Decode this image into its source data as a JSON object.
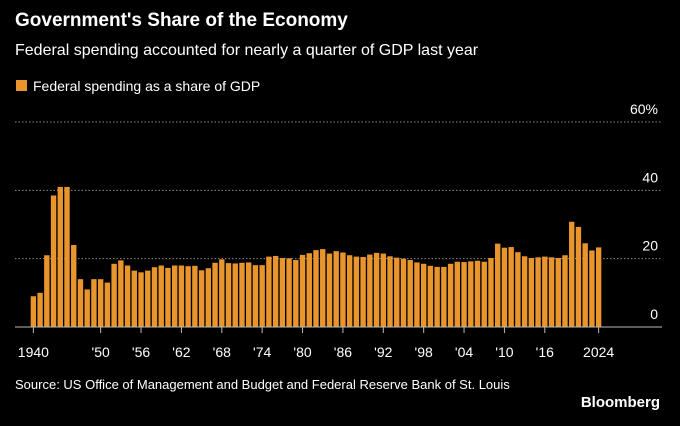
{
  "chart_data": {
    "type": "bar",
    "title": "Government's Share of the Economy",
    "subtitle": "Federal spending accounted for nearly a quarter of GDP last year",
    "series": [
      {
        "name": "Federal spending as a share of GDP",
        "color": "#e8952d",
        "values": [
          9,
          10,
          21,
          38.5,
          41,
          41,
          24,
          14,
          11,
          14,
          14,
          13,
          18.5,
          19.5,
          18,
          16.5,
          16,
          16.5,
          17.5,
          18,
          17.3,
          18,
          18,
          17.8,
          17.9,
          16.6,
          17.2,
          18.8,
          19.8,
          18.7,
          18.6,
          18.8,
          18.9,
          18.1,
          18.1,
          20.6,
          20.8,
          20.2,
          20.1,
          19.6,
          21.1,
          21.6,
          22.5,
          22.8,
          21.5,
          22.2,
          21.8,
          21.0,
          20.6,
          20.5,
          21.2,
          21.7,
          21.5,
          20.7,
          20.3,
          20.0,
          19.6,
          18.9,
          18.5,
          17.9,
          17.6,
          17.6,
          18.5,
          19.1,
          19.0,
          19.2,
          19.4,
          19.1,
          20.2,
          24.4,
          23.2,
          23.4,
          21.9,
          20.7,
          20.2,
          20.4,
          20.6,
          20.4,
          20.2,
          21.0,
          30.8,
          29.3,
          24.5,
          22.4,
          23.3
        ]
      }
    ],
    "categories": [
      "1940",
      null,
      null,
      null,
      null,
      null,
      null,
      null,
      null,
      null,
      "'50",
      null,
      null,
      null,
      null,
      null,
      "'56",
      null,
      null,
      null,
      null,
      null,
      "'62",
      null,
      null,
      null,
      null,
      null,
      "'68",
      null,
      null,
      null,
      null,
      null,
      "'74",
      null,
      null,
      null,
      null,
      null,
      "'80",
      null,
      null,
      null,
      null,
      null,
      "'86",
      null,
      null,
      null,
      null,
      null,
      "'92",
      null,
      null,
      null,
      null,
      null,
      "'98",
      null,
      null,
      null,
      null,
      null,
      "'04",
      null,
      null,
      null,
      null,
      null,
      "'10",
      null,
      null,
      null,
      null,
      null,
      "'16",
      null,
      null,
      null,
      null,
      null,
      null,
      null,
      "2024"
    ],
    "ylim": [
      0,
      60
    ],
    "yticks": [
      0,
      20,
      40,
      {
        "value": 60,
        "label": "60%"
      }
    ],
    "grid": true,
    "source": "Source: US Office of Management and Budget and Federal Reserve Bank of St. Louis",
    "brand": "Bloomberg"
  }
}
